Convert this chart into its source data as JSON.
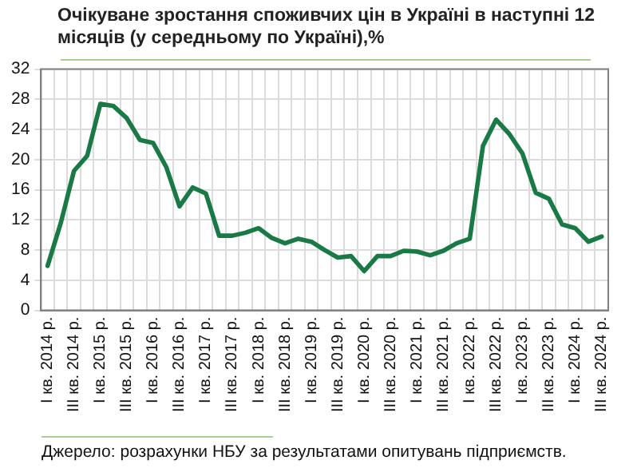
{
  "chart_data": {
    "type": "line",
    "title": "Очікуване зростання споживчих цін в Україні в наступні 12 місяців (у середньому по Україні),%",
    "categories": [
      "I кв. 2014 р.",
      null,
      "III кв. 2014 р.",
      null,
      "I кв. 2015 р.",
      null,
      "III кв. 2015 р.",
      null,
      "I кв. 2016 р.",
      null,
      "III кв. 2016 р.",
      null,
      "I кв. 2017 р.",
      null,
      "III кв. 2017 р.",
      null,
      "I кв. 2018 р.",
      null,
      "III кв. 2018 р.",
      null,
      "I кв. 2019 р.",
      null,
      "III кв. 2019 р.",
      null,
      "I кв. 2020 р.",
      null,
      "III кв. 2020 р.",
      null,
      "I кв. 2021 р.",
      null,
      "III кв. 2021 р.",
      null,
      "I кв. 2022 р.",
      null,
      "III кв. 2022 р.",
      null,
      "I кв. 2023 р.",
      null,
      "III кв. 2023 р.",
      null,
      "I кв. 2024 р.",
      null,
      "III кв. 2024 р."
    ],
    "series": [
      {
        "color": "#1a7a45",
        "values": [
          5.9,
          11.6,
          18.5,
          20.5,
          27.4,
          27.1,
          25.5,
          22.6,
          22.2,
          19.0,
          13.8,
          16.3,
          15.5,
          9.9,
          9.9,
          10.3,
          10.9,
          9.6,
          8.9,
          9.5,
          9.1,
          8.0,
          7.0,
          7.2,
          5.2,
          7.2,
          7.2,
          7.9,
          7.8,
          7.3,
          7.9,
          8.9,
          9.5,
          21.8,
          25.3,
          23.4,
          20.8,
          15.6,
          14.8,
          11.4,
          10.9,
          9.1,
          9.8
        ]
      }
    ],
    "ylim": [
      0,
      32
    ],
    "yticks": [
      0,
      4,
      8,
      12,
      16,
      20,
      24,
      28,
      32
    ],
    "grid": true,
    "legend": false,
    "marker": "none",
    "line_style": "solid",
    "annotations": [
      "Джерело: розрахунки НБУ за результатами опитувань підприємств."
    ]
  }
}
